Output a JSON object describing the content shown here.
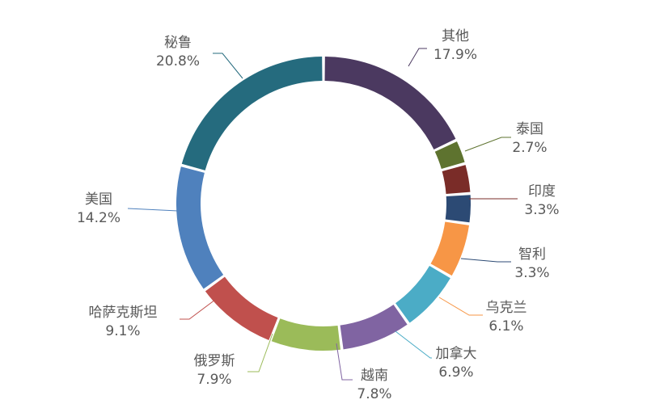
{
  "chart_data": {
    "type": "pie",
    "variant": "donut",
    "title": "",
    "slices": [
      {
        "label": "其他",
        "value": 17.9,
        "display": "17.9%",
        "color": "#4B3960"
      },
      {
        "label": "泰国",
        "value": 2.7,
        "display": "2.7%",
        "color": "#5E732F"
      },
      {
        "label": "印度",
        "value": 3.3,
        "display": "3.3%",
        "color": "#7A2C28"
      },
      {
        "label": "智利",
        "value": 3.3,
        "display": "3.3%",
        "color": "#2C4A74"
      },
      {
        "label": "乌克兰",
        "value": 6.1,
        "display": "6.1%",
        "color": "#F79646"
      },
      {
        "label": "加拿大",
        "value": 6.9,
        "display": "6.9%",
        "color": "#4BACC6"
      },
      {
        "label": "越南",
        "value": 7.8,
        "display": "7.8%",
        "color": "#8064A2"
      },
      {
        "label": "俄罗斯",
        "value": 7.9,
        "display": "7.9%",
        "color": "#9BBB59"
      },
      {
        "label": "哈萨克斯坦",
        "value": 9.1,
        "display": "9.1%",
        "color": "#C0504D"
      },
      {
        "label": "美国",
        "value": 14.2,
        "display": "14.2%",
        "color": "#4F81BD"
      },
      {
        "label": "秘鲁",
        "value": 20.8,
        "display": "20.8%",
        "color": "#256B7E"
      }
    ]
  }
}
